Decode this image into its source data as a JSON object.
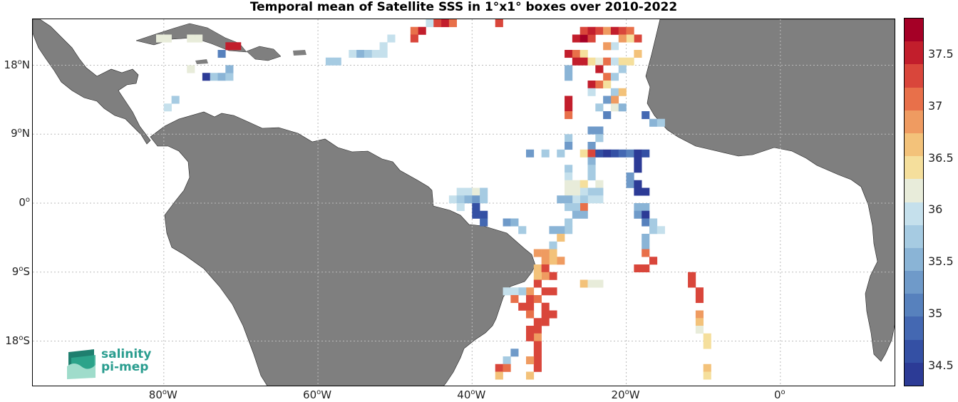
{
  "title": "Temporal mean of Satellite SSS in 1°x1° boxes over 2010-2022",
  "lat_labels": [
    {
      "deg": "18",
      "hem": "N",
      "value": 18
    },
    {
      "deg": "9",
      "hem": "N",
      "value": 9
    },
    {
      "deg": "0",
      "hem": "",
      "value": 0
    },
    {
      "deg": "9",
      "hem": "S",
      "value": -9
    },
    {
      "deg": "18",
      "hem": "S",
      "value": -18
    }
  ],
  "lon_labels": [
    {
      "deg": "80",
      "hem": "W",
      "value": -80
    },
    {
      "deg": "60",
      "hem": "W",
      "value": -60
    },
    {
      "deg": "40",
      "hem": "W",
      "value": -40
    },
    {
      "deg": "20",
      "hem": "W",
      "value": -20
    },
    {
      "deg": "0",
      "hem": "",
      "value": 0
    }
  ],
  "colorbar": {
    "min": 34.3,
    "max": 37.85,
    "ticks": [
      "34.5",
      "35",
      "35.5",
      "36",
      "36.5",
      "37",
      "37.5"
    ],
    "colors": [
      "#2c3b96",
      "#3450a4",
      "#4468b2",
      "#5781bd",
      "#6f9ac9",
      "#8ab4d6",
      "#a6cbe2",
      "#c5e0ec",
      "#e8ecda",
      "#f5df9c",
      "#f3c27a",
      "#ef9b61",
      "#e8704a",
      "#d9463b",
      "#c21e2c",
      "#a50026"
    ]
  },
  "logo": {
    "line1": "salinity",
    "line2": "pi-mep"
  },
  "map_bounds": {
    "lon_min": -97,
    "lon_max": 15,
    "lat_min": -24,
    "lat_max": 24
  },
  "land_color": "#7f7f7f",
  "grid_color": "#bbbbbb"
}
